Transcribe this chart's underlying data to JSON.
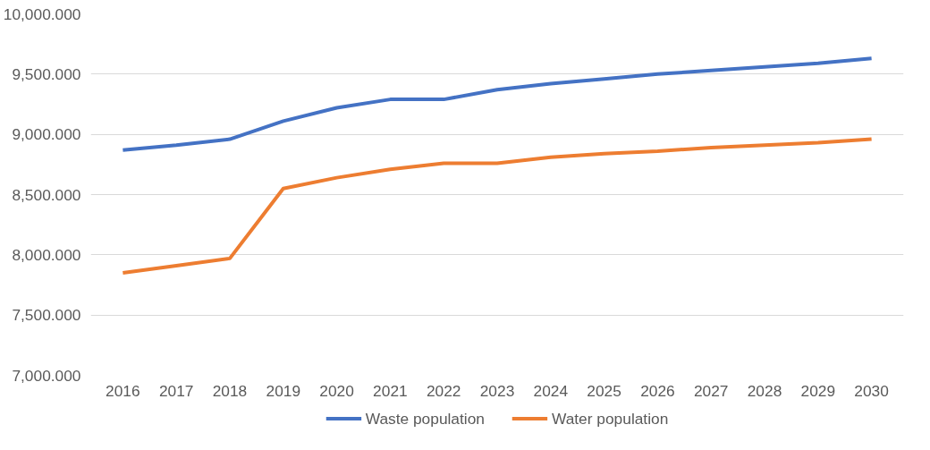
{
  "chart_data": {
    "type": "line",
    "categories": [
      "2016",
      "2017",
      "2018",
      "2019",
      "2020",
      "2021",
      "2022",
      "2023",
      "2024",
      "2025",
      "2026",
      "2027",
      "2028",
      "2029",
      "2030"
    ],
    "series": [
      {
        "name": "Waste population",
        "color": "#4472c4",
        "values": [
          8870,
          8910,
          8960,
          9110,
          9220,
          9290,
          9290,
          9370,
          9420,
          9460,
          9500,
          9530,
          9560,
          9590,
          9630
        ]
      },
      {
        "name": "Water population",
        "color": "#ed7d31",
        "values": [
          7850,
          7910,
          7970,
          8550,
          8640,
          8710,
          8760,
          8760,
          8810,
          8840,
          8860,
          8890,
          8910,
          8930,
          8960
        ]
      }
    ],
    "ylim": [
      7000,
      10000
    ],
    "yticks": [
      {
        "value": 7000,
        "label": "7,000.000"
      },
      {
        "value": 7500,
        "label": "7,500.000"
      },
      {
        "value": 8000,
        "label": "8,000.000"
      },
      {
        "value": 8500,
        "label": "8,500.000"
      },
      {
        "value": 9000,
        "label": "9,000.000"
      },
      {
        "value": 9500,
        "label": "9,500.000"
      },
      {
        "value": 10000,
        "label": "10,000.000"
      }
    ],
    "grid": "y",
    "legend": "bottom",
    "marker": "none",
    "line_style": "solid"
  }
}
